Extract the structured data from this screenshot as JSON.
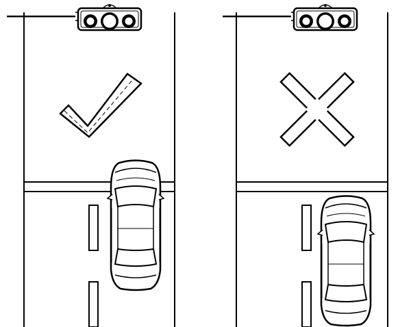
{
  "panels": [
    {
      "verdict": "correct",
      "verdict_icon": "check-mark-icon",
      "signal_icon": "traffic-light-icon",
      "car_icon": "car-top-view-icon",
      "car_position": "past-stop-line"
    },
    {
      "verdict": "incorrect",
      "verdict_icon": "cross-mark-icon",
      "signal_icon": "traffic-light-icon",
      "car_icon": "car-top-view-icon",
      "car_position": "behind-stop-line"
    }
  ],
  "colors": {
    "ink": "#000000",
    "paper": "#ffffff"
  }
}
